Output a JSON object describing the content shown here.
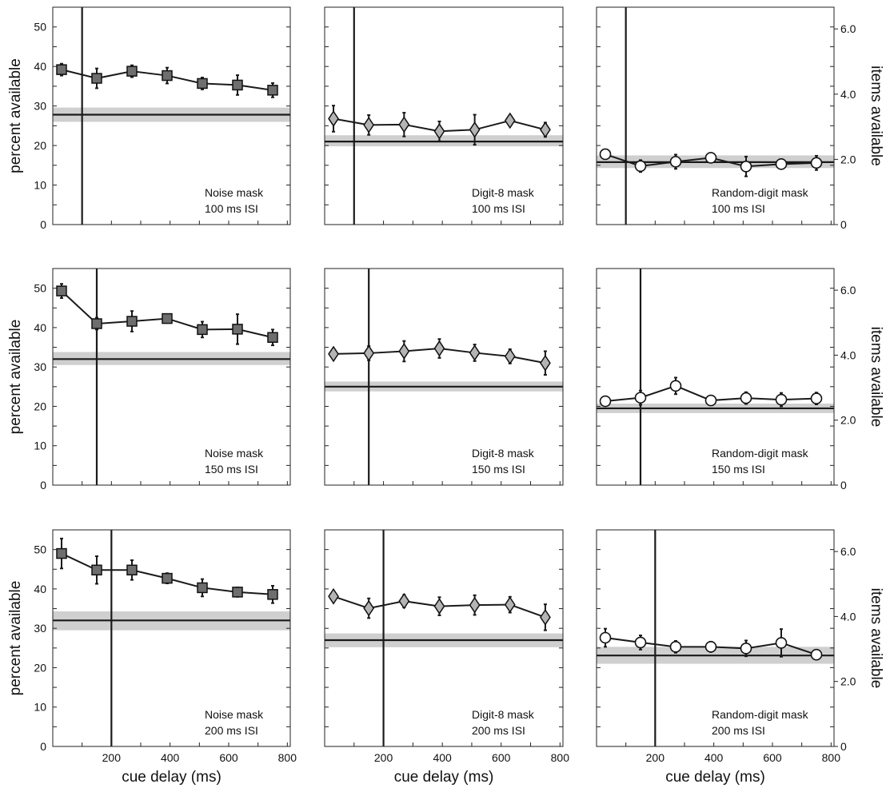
{
  "chart_data": {
    "type": "line",
    "xlabel": "cue delay (ms)",
    "ylabel_left": "percent available",
    "ylabel_right": "items available",
    "x_ticks": [
      200,
      400,
      600,
      800
    ],
    "xlim": [
      0,
      810
    ],
    "ylim": [
      0,
      55
    ],
    "y_ticks_left": [
      0,
      10,
      20,
      30,
      40,
      50
    ],
    "y_ticks_right": [
      "0",
      "2.0",
      "4.0",
      "6.0"
    ],
    "grid": false,
    "x": [
      30,
      150,
      270,
      390,
      510,
      630,
      750
    ],
    "panels": [
      {
        "label": [
          "Noise mask",
          "100 ms ISI"
        ],
        "marker": "square",
        "isi": 100,
        "baseline": 27.8,
        "band": [
          26.0,
          29.6
        ],
        "values": [
          39.2,
          37.0,
          38.8,
          37.7,
          35.7,
          35.3,
          34.0
        ],
        "err": [
          1.5,
          2.5,
          1.5,
          2.0,
          1.5,
          2.5,
          1.8
        ]
      },
      {
        "label": [
          "Digit-8 mask",
          "100 ms ISI"
        ],
        "marker": "diamond",
        "isi": 100,
        "baseline": 21.0,
        "band": [
          19.8,
          22.6
        ],
        "values": [
          26.8,
          25.2,
          25.3,
          23.6,
          24.0,
          26.3,
          24.0
        ],
        "err": [
          3.3,
          2.5,
          3.0,
          2.5,
          3.8,
          1.2,
          1.8
        ]
      },
      {
        "label": [
          "Random-digit mask",
          "100 ms ISI"
        ],
        "marker": "circle",
        "isi": 100,
        "baseline": 15.8,
        "band": [
          14.3,
          17.5
        ],
        "values": [
          17.8,
          14.8,
          15.9,
          16.9,
          14.7,
          15.3,
          15.6
        ],
        "err": [
          0.9,
          1.5,
          1.8,
          0.9,
          2.5,
          0.9,
          1.8
        ]
      },
      {
        "label": [
          "Noise mask",
          "150 ms ISI"
        ],
        "marker": "square",
        "isi": 150,
        "baseline": 32.0,
        "band": [
          30.5,
          33.8
        ],
        "values": [
          49.3,
          41.0,
          41.6,
          42.3,
          39.5,
          39.6,
          37.5
        ],
        "err": [
          1.8,
          1.5,
          2.6,
          1.0,
          2.0,
          3.8,
          2.0
        ]
      },
      {
        "label": [
          "Digit-8 mask",
          "150 ms ISI"
        ],
        "marker": "diamond",
        "isi": 150,
        "baseline": 25.0,
        "band": [
          23.8,
          26.3
        ],
        "values": [
          33.3,
          33.5,
          34.0,
          34.7,
          33.6,
          32.7,
          31.0
        ],
        "err": [
          1.0,
          1.8,
          2.6,
          2.4,
          2.1,
          1.8,
          3.0
        ]
      },
      {
        "label": [
          "Random-digit mask",
          "150 ms ISI"
        ],
        "marker": "circle",
        "isi": 150,
        "baseline": 19.5,
        "band": [
          18.3,
          20.7
        ],
        "values": [
          21.3,
          22.2,
          25.2,
          21.5,
          22.1,
          21.7,
          22.0
        ],
        "err": [
          0.9,
          1.8,
          2.1,
          1.2,
          1.5,
          1.7,
          1.5
        ]
      },
      {
        "label": [
          "Noise mask",
          "200 ms ISI"
        ],
        "marker": "square",
        "isi": 200,
        "baseline": 32.0,
        "band": [
          29.5,
          34.3
        ],
        "values": [
          49.0,
          44.8,
          44.8,
          42.7,
          40.3,
          39.2,
          38.6
        ],
        "err": [
          3.8,
          3.5,
          2.5,
          1.3,
          2.2,
          1.2,
          2.2
        ]
      },
      {
        "label": [
          "Digit-8 mask",
          "200 ms ISI"
        ],
        "marker": "diamond",
        "isi": 200,
        "baseline": 27.0,
        "band": [
          25.2,
          28.7
        ],
        "values": [
          38.1,
          35.1,
          36.9,
          35.6,
          35.9,
          36.0,
          32.8
        ],
        "err": [
          0.9,
          2.5,
          1.6,
          2.3,
          2.5,
          2.0,
          3.3
        ]
      },
      {
        "label": [
          "Random-digit mask",
          "200 ms ISI"
        ],
        "marker": "circle",
        "isi": 200,
        "baseline": 23.1,
        "band": [
          21.0,
          25.3
        ],
        "values": [
          27.6,
          26.4,
          25.3,
          25.3,
          24.9,
          26.3,
          23.3
        ],
        "err": [
          2.3,
          1.8,
          1.5,
          1.3,
          2.0,
          3.5,
          0.6
        ]
      }
    ]
  },
  "colors": {
    "square_fill": "#6e6e6e",
    "diamond_fill": "#b4b4b4",
    "circle_fill": "#ffffff",
    "band_fill": "#cfcfcf",
    "line": "#1a1a1a"
  }
}
